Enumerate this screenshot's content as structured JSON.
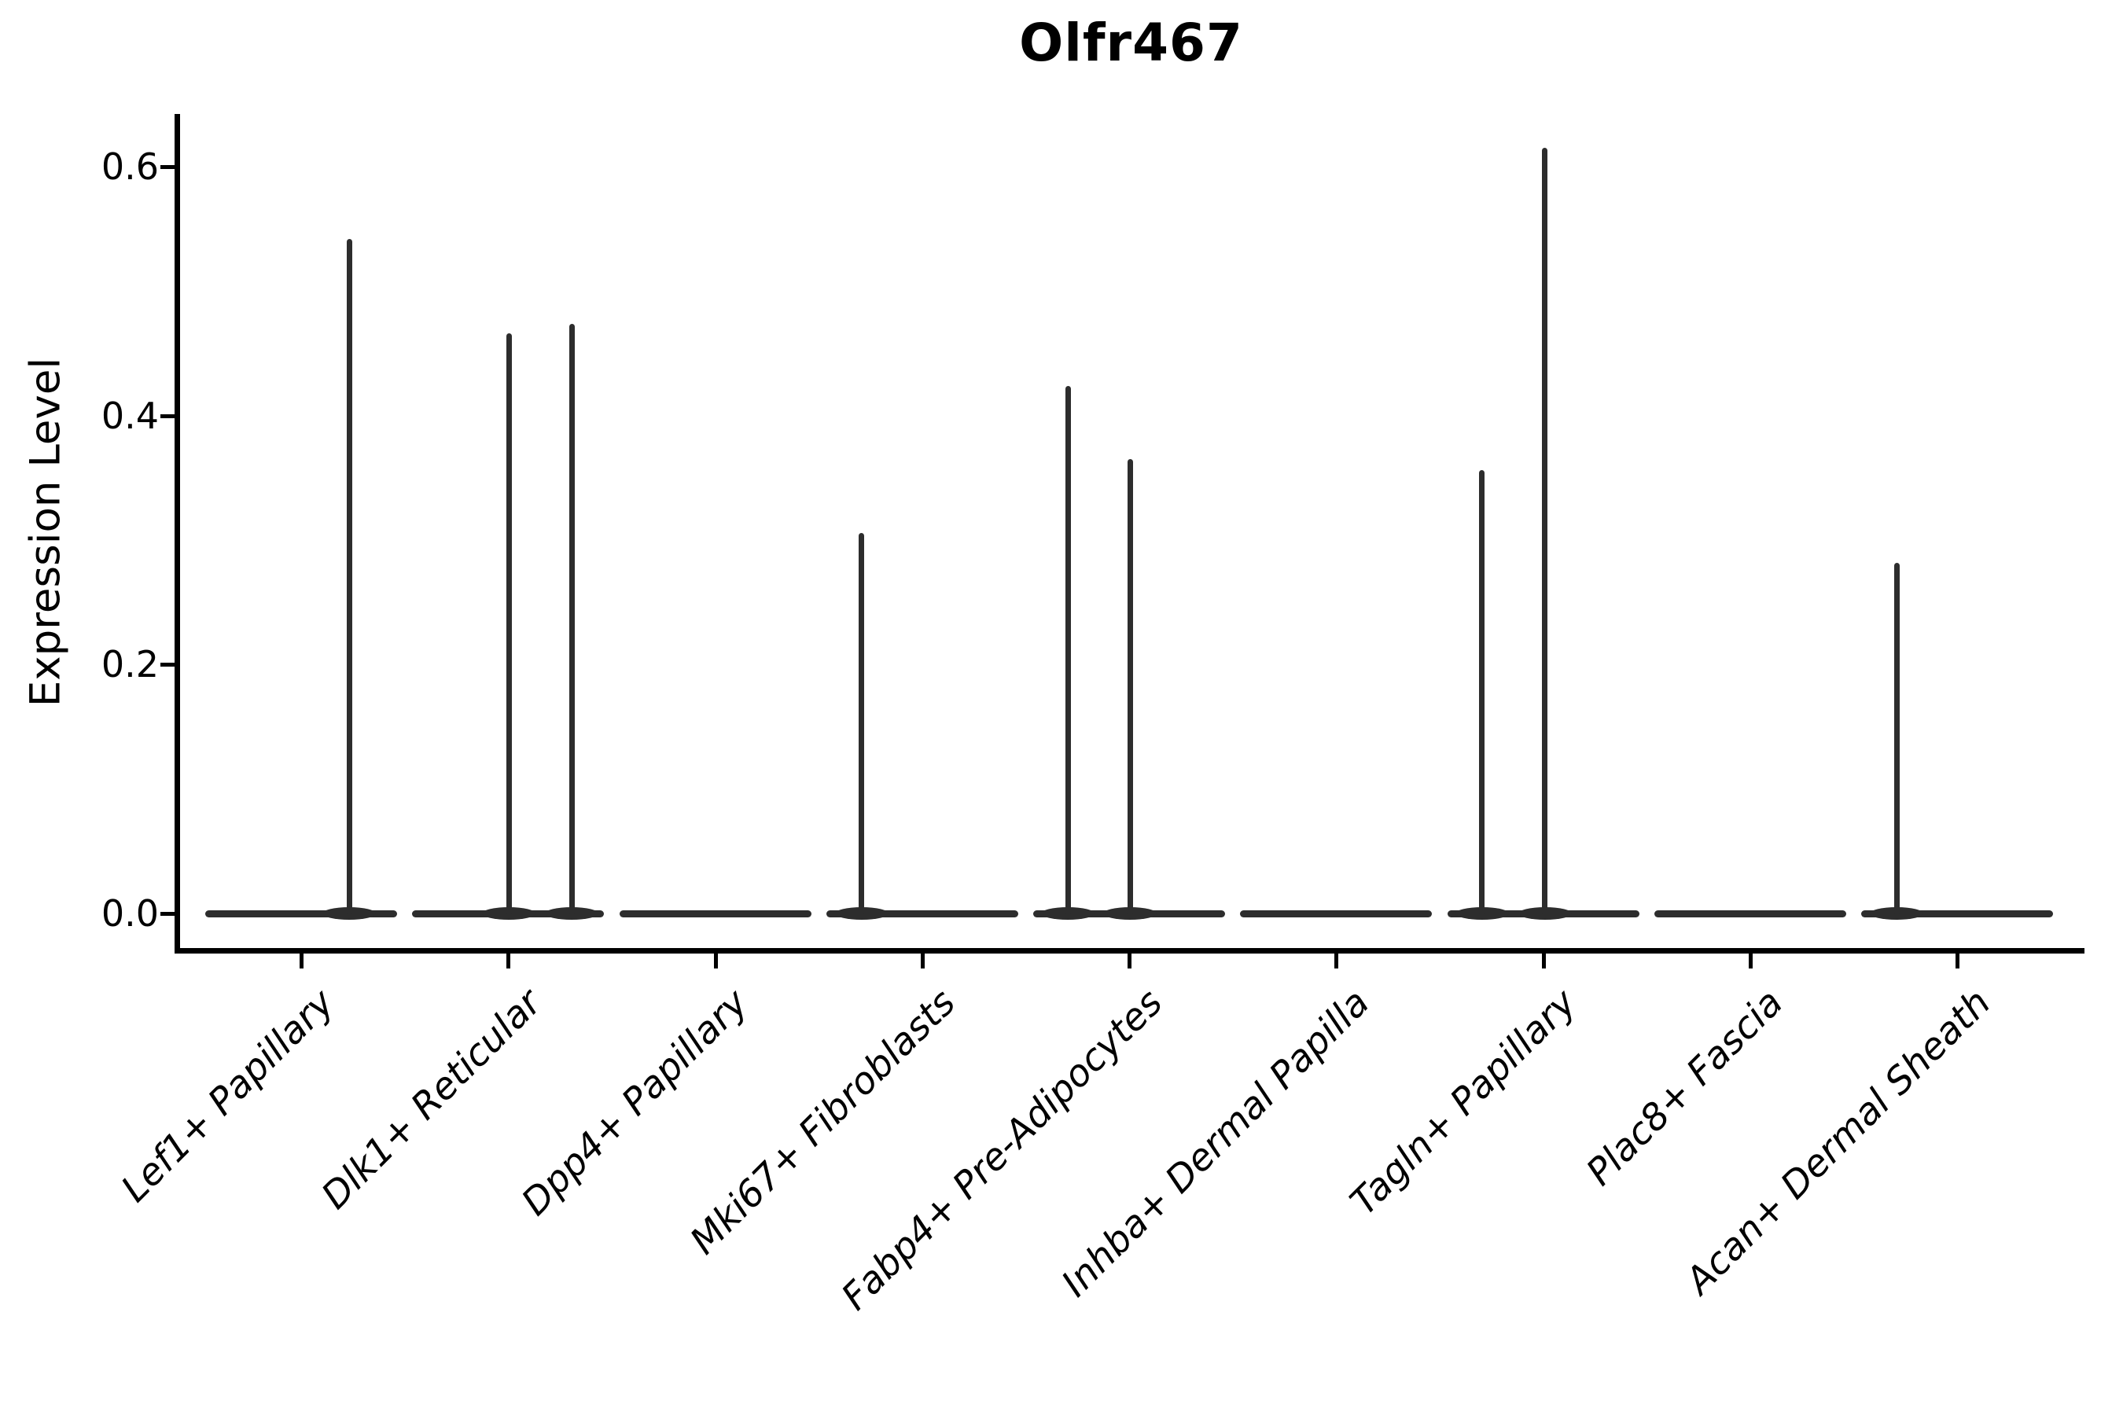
{
  "title": "Olfr467",
  "chart_data": {
    "type": "violin",
    "title": "Olfr467",
    "ylabel": "Expression Level",
    "xlabel": "",
    "grid": false,
    "legend_position": "none",
    "ytick_labels": [
      "0.0",
      "0.2",
      "0.4",
      "0.6"
    ],
    "ytick_values": [
      0.0,
      0.2,
      0.4,
      0.6
    ],
    "ylim": [
      -0.03,
      0.642
    ],
    "categories": [
      "Lef1+ Papillary",
      "Dlk1+ Reticular",
      "Dpp4+ Papillary",
      "Mki67+ Fibroblasts",
      "Fabp4+ Pre-Adipocytes",
      "Inhba+ Dermal Papilla",
      "Tagln+ Papillary",
      "Plac8+ Fascia",
      "Acan+ Dermal Sheath"
    ],
    "violins": [
      {
        "category": "Lef1+ Papillary",
        "zero_density_base": true,
        "spikes": [
          {
            "dx": 61,
            "value": 0.542
          }
        ]
      },
      {
        "category": "Dlk1+ Reticular",
        "zero_density_base": true,
        "spikes": [
          {
            "dx": 1,
            "value": 0.466
          },
          {
            "dx": 81,
            "value": 0.474
          }
        ]
      },
      {
        "category": "Dpp4+ Papillary",
        "zero_density_base": true,
        "spikes": []
      },
      {
        "category": "Mki67+ Fibroblasts",
        "zero_density_base": true,
        "spikes": [
          {
            "dx": -77,
            "value": 0.306
          }
        ]
      },
      {
        "category": "Fabp4+ Pre-Adipocytes",
        "zero_density_base": true,
        "spikes": [
          {
            "dx": -78,
            "value": 0.424
          },
          {
            "dx": 1,
            "value": 0.365
          }
        ]
      },
      {
        "category": "Inhba+ Dermal Papilla",
        "zero_density_base": true,
        "spikes": []
      },
      {
        "category": "Tagln+ Papillary",
        "zero_density_base": true,
        "spikes": [
          {
            "dx": -78,
            "value": 0.356
          },
          {
            "dx": 2,
            "value": 0.615
          }
        ]
      },
      {
        "category": "Plac8+ Fascia",
        "zero_density_base": true,
        "spikes": []
      },
      {
        "category": "Acan+ Dermal Sheath",
        "zero_density_base": true,
        "spikes": [
          {
            "dx": -77,
            "value": 0.282
          }
        ]
      }
    ],
    "colors": {
      "violin": "#2d2d2d",
      "axis": "#000000",
      "text": "#000000",
      "background": "#ffffff"
    }
  }
}
